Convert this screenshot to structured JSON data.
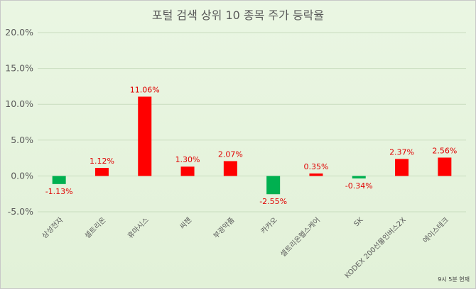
{
  "chart_data": {
    "type": "bar",
    "title": "포털 검색 상위 10 종목 주가 등락율",
    "categories": [
      "삼성전자",
      "셀트리온",
      "휴마시스",
      "씨젠",
      "부광약품",
      "카카오",
      "셀트리온헬스케어",
      "SK",
      "KODEX 200선물인버스2X",
      "에이스테크"
    ],
    "values": [
      -1.13,
      1.12,
      11.06,
      1.3,
      2.07,
      -2.55,
      0.35,
      -0.34,
      2.37,
      2.56
    ],
    "value_labels": [
      "-1.13%",
      "1.12%",
      "11.06%",
      "1.30%",
      "2.07%",
      "-2.55%",
      "0.35%",
      "-0.34%",
      "2.37%",
      "2.56%"
    ],
    "ylim": [
      -5,
      20
    ],
    "yticks": [
      -5,
      0,
      5,
      10,
      15,
      20
    ],
    "ytick_labels": [
      "-5.0%",
      "0.0%",
      "5.0%",
      "10.0%",
      "15.0%",
      "20.0%"
    ],
    "xlabel": "",
    "ylabel": "",
    "grid": true,
    "colors": {
      "positive": "#ff0000",
      "negative": "#00b050",
      "label": "#e00000",
      "background": "#e4f2db"
    }
  },
  "footnote": "9시 5분 현재"
}
